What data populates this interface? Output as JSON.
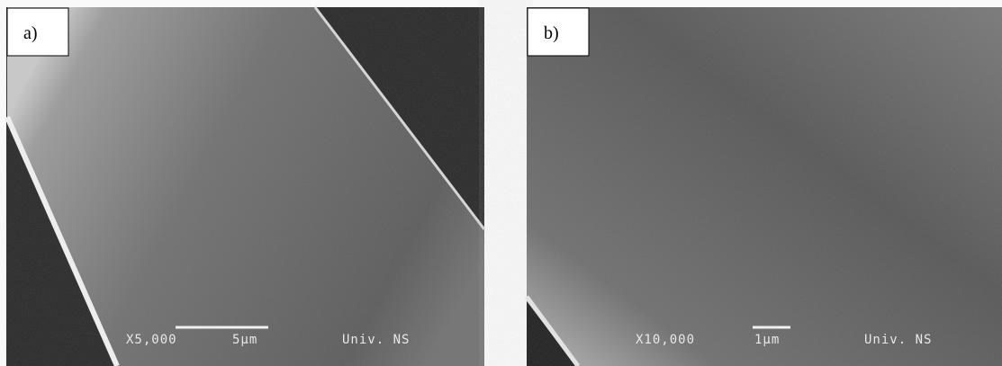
{
  "panels": [
    {
      "label": "a)",
      "magnification": "X5,000",
      "scale": "5µm",
      "institution": "Univ. NS"
    },
    {
      "label": "b)",
      "magnification": "X10,000",
      "scale": "1µm",
      "institution": "Univ. NS"
    }
  ]
}
